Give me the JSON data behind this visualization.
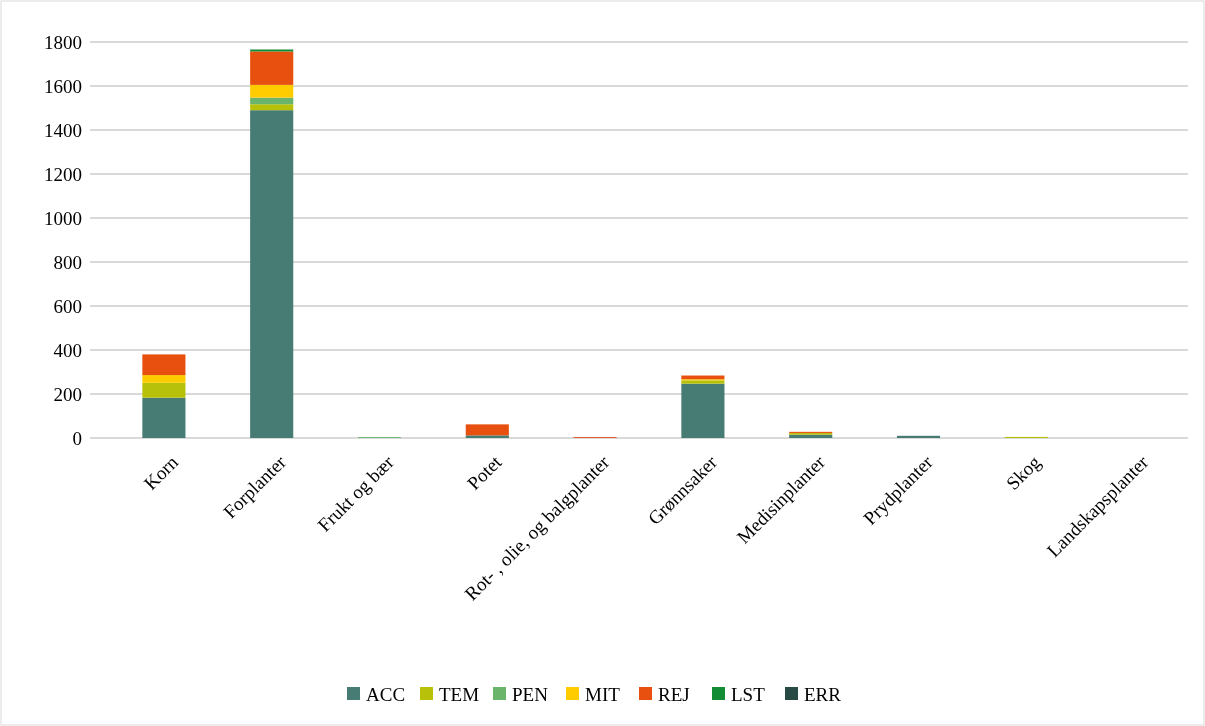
{
  "chart_data": {
    "type": "bar",
    "stacked": true,
    "categories": [
      "Korn",
      "Forplanter",
      "Frukt og bær",
      "Potet",
      "Rot- , olie, og balgplanter",
      "Grønnsaker",
      "Medisinplanter",
      "Prydplanter",
      "Skog",
      "Landskapsplanter"
    ],
    "series": [
      {
        "name": "ACC",
        "color": "#467c74",
        "values": [
          183,
          1490,
          0,
          12,
          0,
          247,
          15,
          10,
          0,
          0
        ]
      },
      {
        "name": "TEM",
        "color": "#b8c10a",
        "values": [
          68,
          27,
          0,
          0,
          0,
          15,
          8,
          0,
          5,
          0
        ]
      },
      {
        "name": "PEN",
        "color": "#6ab46c",
        "values": [
          0,
          30,
          4,
          0,
          0,
          0,
          0,
          0,
          0,
          0
        ]
      },
      {
        "name": "MIT",
        "color": "#ffcc00",
        "values": [
          35,
          58,
          0,
          0,
          0,
          5,
          0,
          0,
          0,
          0
        ]
      },
      {
        "name": "REJ",
        "color": "#e85010",
        "values": [
          94,
          152,
          0,
          50,
          4,
          17,
          5,
          0,
          0,
          0
        ]
      },
      {
        "name": "LST",
        "color": "#138c36",
        "values": [
          0,
          9,
          0,
          0,
          0,
          0,
          0,
          0,
          0,
          0
        ]
      },
      {
        "name": "ERR",
        "color": "#284a44",
        "values": [
          0,
          0,
          0,
          0,
          0,
          0,
          0,
          0,
          0,
          0
        ]
      }
    ],
    "ylim": [
      0,
      1800
    ],
    "yticks": [
      0,
      200,
      400,
      600,
      800,
      1000,
      1200,
      1400,
      1600,
      1800
    ],
    "grid": "y",
    "legend": "bottom"
  }
}
